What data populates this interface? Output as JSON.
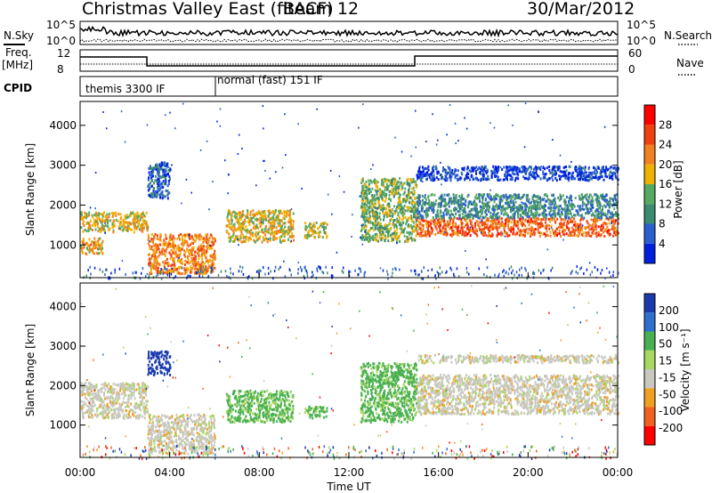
{
  "header": {
    "station": "Christmas Valley East (fitACF)",
    "beam": "Beam 12",
    "date": "30/Mar/2012"
  },
  "top_panels": {
    "nsky_label": "N.Sky",
    "nsearch_label": "N.Search",
    "freq_label": "Freq.",
    "freq_unit": "[MHz]",
    "nave_label": "Nave",
    "cpid_label": "CPID",
    "nsky_ticks": [
      "10^5",
      "10^0"
    ],
    "nsearch_ticks": [
      "10^5",
      "10^0"
    ],
    "freq_ticks": [
      "12",
      "8"
    ],
    "nave_ticks": [
      "60",
      "0"
    ],
    "cpid_segments": [
      {
        "label": "themis 3300 IF",
        "start": 0,
        "end": 6.1
      },
      {
        "label": "normal (fast) 151 IF",
        "start": 6.1,
        "end": 24
      }
    ]
  },
  "colors": {
    "power": [
      "#0020e0",
      "#2a5fd0",
      "#3c8a70",
      "#55aa60",
      "#f0b000",
      "#f08020",
      "#f04010",
      "#ff0000"
    ],
    "velocity": [
      "#1a3ab0",
      "#2f6fd0",
      "#48b050",
      "#a8d860",
      "#c8c8c0",
      "#f0a020",
      "#f06020",
      "#ff0000"
    ],
    "ground_scatter": "#bdbdb5"
  },
  "chart_data": [
    {
      "type": "heatmap",
      "name": "Power",
      "xlabel": "",
      "ylabel": "Slant Range [km]",
      "xlim": [
        0,
        24
      ],
      "ylim": [
        180,
        4600
      ],
      "yticks": [
        1000,
        2000,
        3000,
        4000
      ],
      "colorbar": {
        "label": "Power [dB]",
        "ticks": [
          "28",
          "24",
          "20",
          "16",
          "12",
          "8",
          "4"
        ]
      },
      "regions": [
        {
          "t": [
            0.0,
            3.0
          ],
          "range": [
            1350,
            1850
          ],
          "level": 20
        },
        {
          "t": [
            0.0,
            1.0
          ],
          "range": [
            800,
            1200
          ],
          "level": 22
        },
        {
          "t": [
            3.0,
            6.0
          ],
          "range": [
            300,
            1300
          ],
          "level": 24
        },
        {
          "t": [
            3.0,
            4.0
          ],
          "range": [
            2200,
            3100
          ],
          "level": 8
        },
        {
          "t": [
            6.5,
            9.5
          ],
          "range": [
            1100,
            1900
          ],
          "level": 20
        },
        {
          "t": [
            10.0,
            11.0
          ],
          "range": [
            1200,
            1600
          ],
          "level": 18
        },
        {
          "t": [
            12.5,
            15.0
          ],
          "range": [
            1100,
            2700
          ],
          "level": 16
        },
        {
          "t": [
            15.0,
            24.0
          ],
          "range": [
            1250,
            1700
          ],
          "level": 26
        },
        {
          "t": [
            15.0,
            24.0
          ],
          "range": [
            1700,
            2300
          ],
          "level": 12
        },
        {
          "t": [
            15.0,
            24.0
          ],
          "range": [
            2650,
            3000
          ],
          "level": 6
        }
      ]
    },
    {
      "type": "heatmap",
      "name": "Velocity",
      "xlabel": "Time UT",
      "ylabel": "Slant Range [km]",
      "xlim": [
        0,
        24
      ],
      "ylim": [
        180,
        4600
      ],
      "xticks": [
        "00:00",
        "04:00",
        "08:00",
        "12:00",
        "16:00",
        "20:00",
        "00:00"
      ],
      "yticks": [
        1000,
        2000,
        3000,
        4000
      ],
      "colorbar": {
        "label": "Velocity [m s⁻¹]",
        "ticks": [
          "200",
          "100",
          "50",
          "15",
          "-15",
          "-50",
          "-100",
          "-200"
        ]
      },
      "regions": [
        {
          "t": [
            0.0,
            3.0
          ],
          "range": [
            1200,
            2100
          ],
          "velocity": 0
        },
        {
          "t": [
            3.0,
            6.0
          ],
          "range": [
            300,
            1300
          ],
          "velocity": 0
        },
        {
          "t": [
            3.0,
            4.0
          ],
          "range": [
            2300,
            2900
          ],
          "velocity": 200
        },
        {
          "t": [
            6.5,
            9.5
          ],
          "range": [
            1100,
            1900
          ],
          "velocity": 40
        },
        {
          "t": [
            10.0,
            11.0
          ],
          "range": [
            1200,
            1500
          ],
          "velocity": 40
        },
        {
          "t": [
            12.5,
            15.0
          ],
          "range": [
            1100,
            2600
          ],
          "velocity": 40
        },
        {
          "t": [
            15.0,
            24.0
          ],
          "range": [
            1300,
            2300
          ],
          "velocity": 0
        },
        {
          "t": [
            15.0,
            24.0
          ],
          "range": [
            2600,
            2800
          ],
          "velocity": 0
        }
      ]
    }
  ]
}
